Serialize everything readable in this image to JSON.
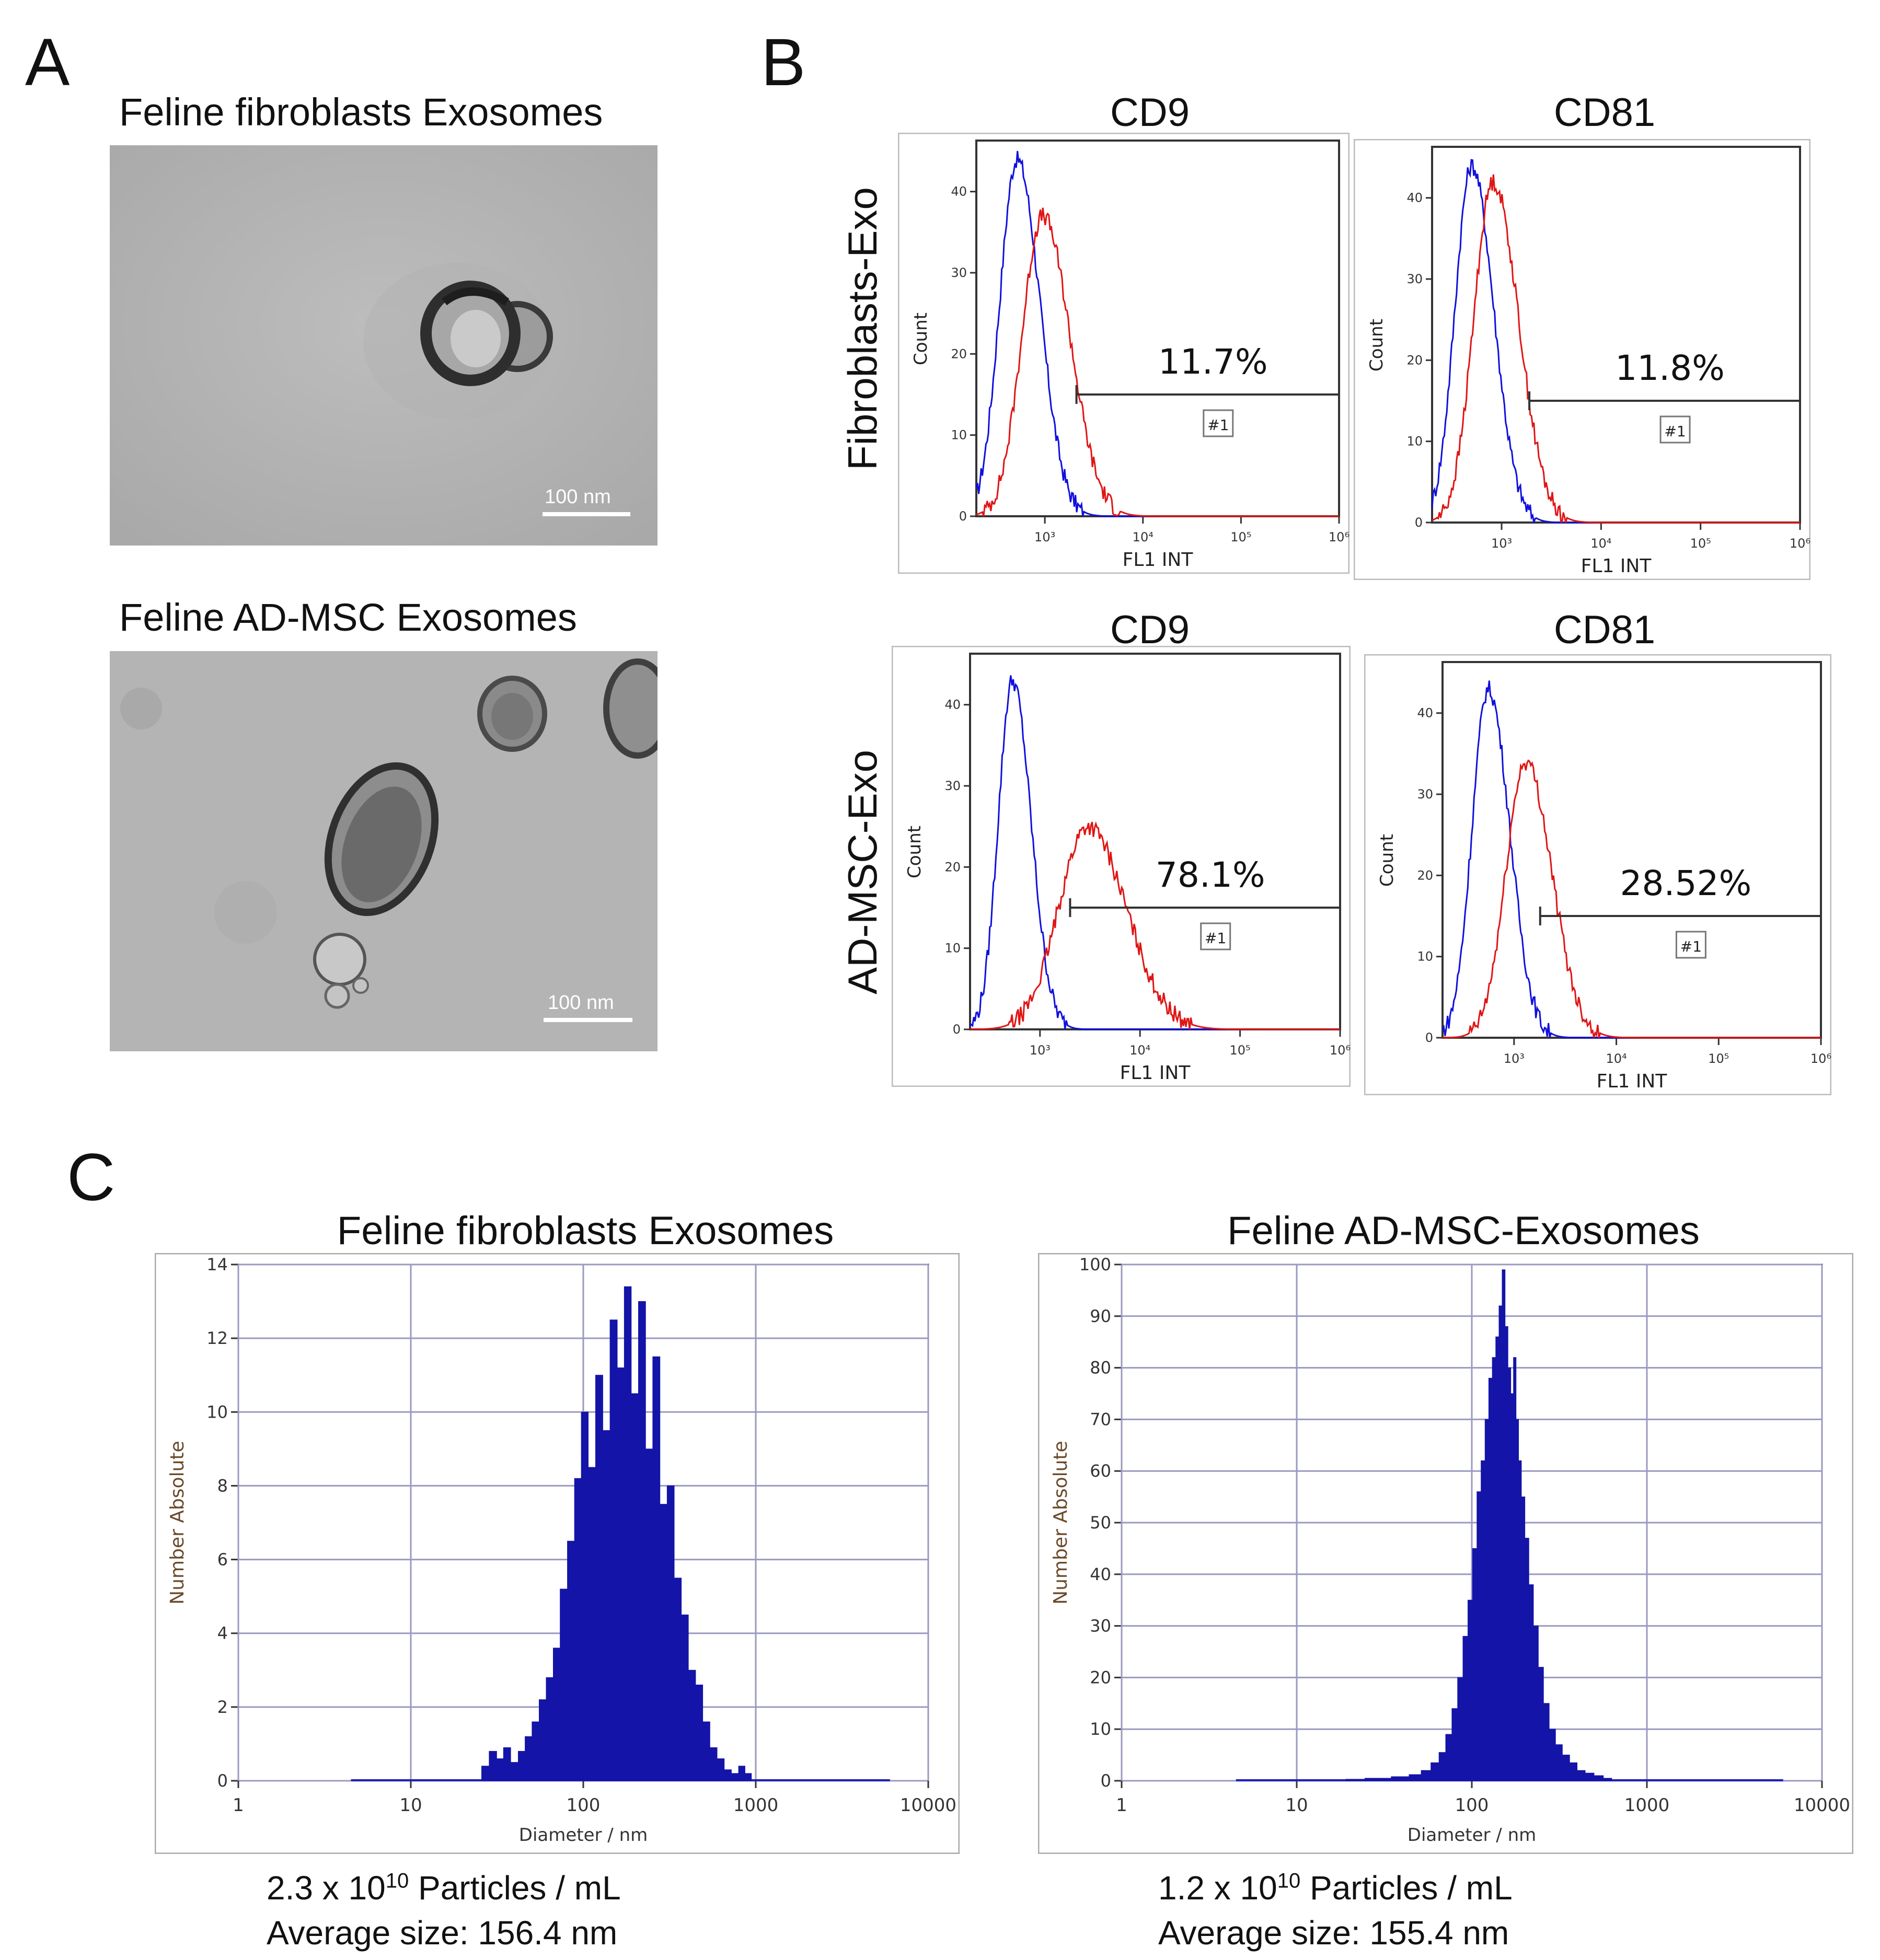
{
  "panel_a": {
    "letter": "A",
    "images": [
      {
        "title": "Feline fibroblasts Exosomes",
        "scalebar": "100 nm"
      },
      {
        "title": "Feline AD-MSC Exosomes",
        "scalebar": "100 nm"
      }
    ]
  },
  "panel_b": {
    "letter": "B",
    "col_titles": [
      "CD9",
      "CD81"
    ],
    "row_labels": [
      "Fibroblasts-Exo",
      "AD-MSC-Exo"
    ],
    "colors": {
      "control": "#1010dd",
      "marker": "#e01515"
    },
    "plots": [
      {
        "marker": "CD9",
        "percent": "11.7%",
        "gate_label": "#1",
        "ylabel": "Count",
        "xlabel": "FL1 INT",
        "yticks": [
          "0",
          "10",
          "20",
          "30",
          "40"
        ],
        "xticks": [
          "10³",
          "10⁴",
          "10⁵",
          "10⁶"
        ]
      },
      {
        "marker": "CD81",
        "percent": "11.8%",
        "gate_label": "#1",
        "ylabel": "Count",
        "xlabel": "FL1 INT",
        "yticks": [
          "0",
          "10",
          "20",
          "30",
          "40"
        ],
        "xticks": [
          "10³",
          "10⁴",
          "10⁵",
          "10⁶"
        ]
      },
      {
        "marker": "CD9",
        "percent": "78.1%",
        "gate_label": "#1",
        "ylabel": "Count",
        "xlabel": "FL1 INT",
        "yticks": [
          "0",
          "10",
          "20",
          "30",
          "40"
        ],
        "xticks": [
          "10³",
          "10⁴",
          "10⁵",
          "10⁶"
        ]
      },
      {
        "marker": "CD81",
        "percent": "28.52%",
        "gate_label": "#1",
        "ylabel": "Count",
        "xlabel": "FL1 INT",
        "yticks": [
          "0",
          "10",
          "20",
          "30",
          "40"
        ],
        "xticks": [
          "10³",
          "10⁴",
          "10⁵",
          "10⁶"
        ]
      }
    ]
  },
  "panel_c": {
    "letter": "C",
    "charts": [
      {
        "title": "Feline fibroblasts Exosomes",
        "concentration_prefix": "2.3 x 10",
        "concentration_exp": "10",
        "concentration_suffix": " Particles / mL",
        "average": "Average size: 156.4 nm"
      },
      {
        "title": "Feline AD-MSC-Exosomes",
        "concentration_prefix": "1.2 x 10",
        "concentration_exp": "10",
        "concentration_suffix": " Particles / mL",
        "average": "Average size: 155.4 nm"
      }
    ]
  },
  "chart_data": [
    {
      "type": "line",
      "panel": "B",
      "marker": "CD9",
      "group": "Fibroblasts-Exo",
      "ylabel": "Count",
      "xlabel": "FL1 INT",
      "xscale": "log",
      "xlim": [
        200,
        1000000
      ],
      "ylim": [
        0,
        45
      ],
      "gate_start": 2100,
      "gate_percent": 11.7,
      "series": [
        {
          "peak_x": 520,
          "peak_y": 44,
          "width": 0.2
        },
        {
          "peak_x": 950,
          "peak_y": 37,
          "width": 0.24
        }
      ]
    },
    {
      "type": "line",
      "panel": "B",
      "marker": "CD81",
      "group": "Fibroblasts-Exo",
      "ylabel": "Count",
      "xlabel": "FL1 INT",
      "xscale": "log",
      "xlim": [
        200,
        1000000
      ],
      "ylim": [
        0,
        45
      ],
      "gate_start": 1900,
      "gate_percent": 11.8,
      "series": [
        {
          "peak_x": 500,
          "peak_y": 44,
          "width": 0.19
        },
        {
          "peak_x": 820,
          "peak_y": 42,
          "width": 0.22
        }
      ]
    },
    {
      "type": "line",
      "panel": "B",
      "marker": "CD9",
      "group": "AD-MSC-Exo",
      "ylabel": "Count",
      "xlabel": "FL1 INT",
      "xscale": "log",
      "xlim": [
        200,
        1000000
      ],
      "ylim": [
        0,
        45
      ],
      "gate_start": 2000,
      "gate_percent": 78.1,
      "series": [
        {
          "peak_x": 530,
          "peak_y": 43,
          "width": 0.16
        },
        {
          "peak_x": 3000,
          "peak_y": 25,
          "width": 0.33
        }
      ]
    },
    {
      "type": "line",
      "panel": "B",
      "marker": "CD81",
      "group": "AD-MSC-Exo",
      "ylabel": "Count",
      "xlabel": "FL1 INT",
      "xscale": "log",
      "xlim": [
        200,
        1000000
      ],
      "ylim": [
        0,
        45
      ],
      "gate_start": 1800,
      "gate_percent": 28.52,
      "series": [
        {
          "peak_x": 560,
          "peak_y": 43,
          "width": 0.18
        },
        {
          "peak_x": 1300,
          "peak_y": 34,
          "width": 0.22
        }
      ]
    },
    {
      "type": "bar",
      "panel": "C",
      "title": "Feline fibroblasts Exosomes",
      "xlabel": "Diameter / nm",
      "ylabel": "Number Absolute",
      "xscale": "log",
      "xlim": [
        1,
        10000
      ],
      "ylim": [
        0,
        14
      ],
      "yticks": [
        "0",
        "2",
        "4",
        "6",
        "8",
        "10",
        "12",
        "14"
      ],
      "xticks": [
        "1",
        "10",
        "100",
        "1000",
        "10000"
      ],
      "x": [
        27,
        30,
        33,
        36,
        40,
        44,
        48,
        53,
        58,
        64,
        70,
        77,
        85,
        93,
        102,
        112,
        124,
        136,
        150,
        165,
        181,
        199,
        219,
        241,
        265,
        292,
        321,
        353,
        388,
        427,
        470,
        517,
        569,
        626,
        689,
        758,
        834,
        900
      ],
      "values": [
        0.4,
        0.8,
        0.6,
        0.9,
        0.5,
        0.8,
        1.2,
        1.6,
        2.2,
        2.8,
        3.6,
        5.2,
        6.5,
        8.2,
        10.0,
        8.5,
        11.0,
        9.5,
        12.5,
        11.2,
        13.4,
        10.5,
        13.0,
        9.0,
        11.5,
        7.5,
        8.0,
        5.5,
        4.5,
        3.0,
        2.6,
        1.6,
        0.9,
        0.6,
        0.3,
        0.2,
        0.4,
        0.2
      ]
    },
    {
      "type": "bar",
      "panel": "C",
      "title": "Feline AD-MSC-Exosomes",
      "xlabel": "Diameter / nm",
      "ylabel": "Number Absolute",
      "xscale": "log",
      "xlim": [
        1,
        10000
      ],
      "ylim": [
        0,
        100
      ],
      "yticks": [
        "0",
        "10",
        "20",
        "30",
        "40",
        "50",
        "60",
        "70",
        "80",
        "90",
        "100"
      ],
      "xticks": [
        "1",
        "10",
        "100",
        "1000",
        "10000"
      ],
      "x": [
        20,
        30,
        40,
        48,
        55,
        62,
        68,
        74,
        80,
        86,
        92,
        98,
        104,
        110,
        116,
        122,
        128,
        134,
        140,
        146,
        152,
        158,
        164,
        170,
        176,
        182,
        188,
        196,
        206,
        218,
        232,
        248,
        266,
        288,
        314,
        345,
        380,
        420,
        470,
        530,
        600
      ],
      "values": [
        0.3,
        0.5,
        0.8,
        1.2,
        2.0,
        3.5,
        5.5,
        9.0,
        14.0,
        20.0,
        28.0,
        35.0,
        45.0,
        56.0,
        62.0,
        70.0,
        78.0,
        82.0,
        86.0,
        92.0,
        99.0,
        88.0,
        80.0,
        75.0,
        82.0,
        70.0,
        62.0,
        55.0,
        47.0,
        38.0,
        30.0,
        22.0,
        15.0,
        10.0,
        7.0,
        5.0,
        3.5,
        2.0,
        1.5,
        1.0,
        0.5
      ]
    }
  ]
}
